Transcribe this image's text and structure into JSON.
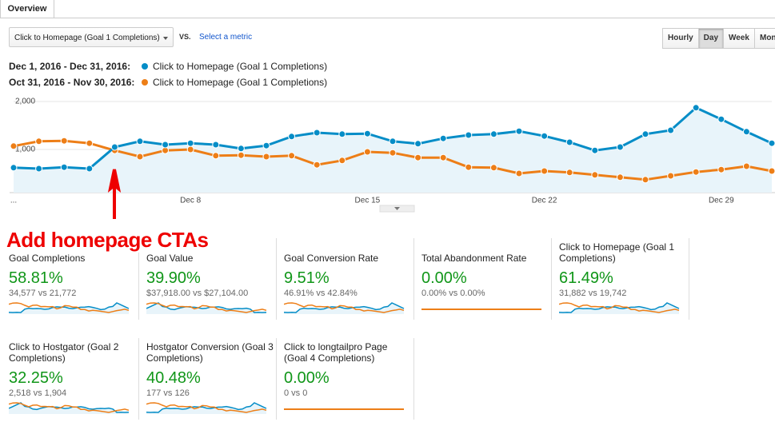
{
  "tab": "Overview",
  "metric_selector": "Click to Homepage (Goal 1 Completions)",
  "vs": "VS.",
  "select_metric": "Select a metric",
  "granularity": [
    "Hourly",
    "Day",
    "Week",
    "Month"
  ],
  "chart_data": {
    "type": "line",
    "categories": [
      "...",
      null,
      null,
      null,
      null,
      null,
      null,
      "Dec 8",
      null,
      null,
      null,
      null,
      null,
      null,
      "Dec 15",
      null,
      null,
      null,
      null,
      null,
      null,
      "Dec 22",
      null,
      null,
      null,
      null,
      null,
      null,
      "Dec 29",
      null,
      null
    ],
    "series": [
      {
        "period": "Dec 1, 2016 - Dec 31, 2016:",
        "name": "Click to Homepage (Goal 1 Completions)",
        "color": "#058dc7",
        "values": [
          620,
          600,
          630,
          600,
          1050,
          1170,
          1100,
          1130,
          1100,
          1020,
          1080,
          1270,
          1350,
          1320,
          1330,
          1170,
          1120,
          1230,
          1300,
          1320,
          1380,
          1280,
          1150,
          980,
          1050,
          1320,
          1400,
          1870,
          1630,
          1370,
          1130
        ]
      },
      {
        "period": "Oct 31, 2016 - Nov 30, 2016:",
        "name": "Click to Homepage (Goal 1 Completions)",
        "color": "#ed7e17",
        "values": [
          1070,
          1170,
          1180,
          1130,
          980,
          850,
          980,
          1000,
          870,
          880,
          850,
          870,
          680,
          770,
          950,
          930,
          830,
          830,
          630,
          620,
          500,
          550,
          520,
          470,
          420,
          370,
          450,
          530,
          580,
          650,
          550
        ]
      }
    ],
    "ylim": [
      100,
      2150
    ],
    "yticks": [
      {
        "value": 1000,
        "label": "1,000"
      },
      {
        "value": 2000,
        "label": "2,000"
      }
    ],
    "grid": true
  },
  "annotation": "Add homepage CTAs",
  "scorecards": [
    {
      "title": "Goal Completions",
      "value": "58.81%",
      "comparison": "34,577 vs 21,772"
    },
    {
      "title": "Goal Value",
      "value": "39.90%",
      "comparison": "$37,918.00 vs $27,104.00"
    },
    {
      "title": "Goal Conversion Rate",
      "value": "9.51%",
      "comparison": "46.91% vs 42.84%"
    },
    {
      "title": "Total Abandonment Rate",
      "value": "0.00%",
      "comparison": "0.00% vs 0.00%"
    },
    {
      "title": "Click to Homepage (Goal 1 Completions)",
      "value": "61.49%",
      "comparison": "31,882 vs 19,742"
    },
    {
      "title": "Click to Hostgator (Goal 2 Completions)",
      "value": "32.25%",
      "comparison": "2,518 vs 1,904"
    },
    {
      "title": "Hostgator Conversion (Goal 3 Completions)",
      "value": "40.48%",
      "comparison": "177 vs 126"
    },
    {
      "title": "Click to longtailpro Page (Goal 4 Completions)",
      "value": "0.00%",
      "comparison": "0 vs 0"
    }
  ]
}
